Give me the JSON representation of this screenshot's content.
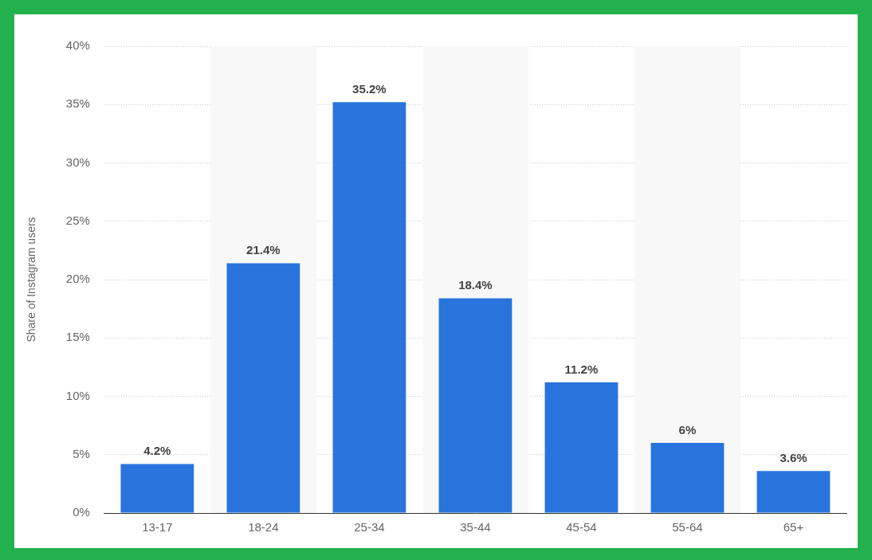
{
  "chart_data": {
    "type": "bar",
    "categories": [
      "13-17",
      "18-24",
      "25-34",
      "35-44",
      "45-54",
      "55-64",
      "65+"
    ],
    "values": [
      4.2,
      21.4,
      35.2,
      18.4,
      11.2,
      6,
      3.6
    ],
    "value_labels": [
      "4.2%",
      "21.4%",
      "35.2%",
      "18.4%",
      "11.2%",
      "6%",
      "3.6%"
    ],
    "data_labels": true,
    "color": "#2874dc",
    "ylabel": "Share of Instagram users",
    "ylim": [
      0,
      40
    ],
    "yticks": [
      {
        "value": 0,
        "label": "0%"
      },
      {
        "value": 5,
        "label": "5%"
      },
      {
        "value": 10,
        "label": "10%"
      },
      {
        "value": 15,
        "label": "15%"
      },
      {
        "value": 20,
        "label": "20%"
      },
      {
        "value": 25,
        "label": "25%"
      },
      {
        "value": 30,
        "label": "30%"
      },
      {
        "value": 35,
        "label": "35%"
      },
      {
        "value": 40,
        "label": "40%"
      }
    ],
    "grid": true
  }
}
